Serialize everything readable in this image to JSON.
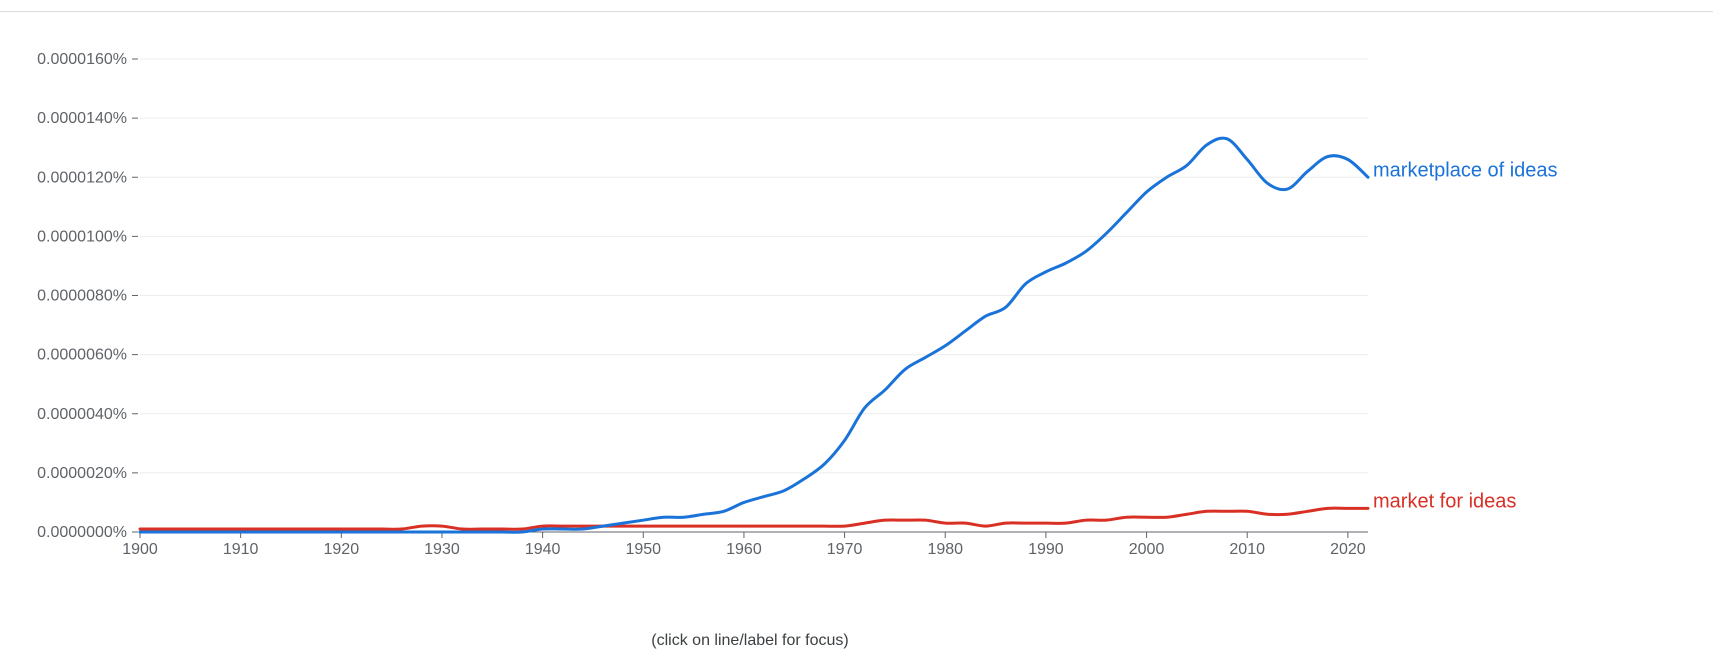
{
  "hint": "(click on line/label for focus)",
  "chart_data": {
    "type": "line",
    "title": "",
    "xlabel": "",
    "ylabel": "",
    "xlim": [
      1900,
      2022
    ],
    "ylim": [
      0,
      1.6e-05
    ],
    "grid": true,
    "x_ticks": [
      "1900",
      "1910",
      "1920",
      "1930",
      "1940",
      "1950",
      "1960",
      "1970",
      "1980",
      "1990",
      "2000",
      "2010",
      "2020"
    ],
    "y_ticks": [
      "0.0000000%",
      "0.0000020%",
      "0.0000040%",
      "0.0000060%",
      "0.0000080%",
      "0.0000100%",
      "0.0000120%",
      "0.0000140%",
      "0.0000160%"
    ],
    "x": [
      1900,
      1902,
      1904,
      1906,
      1908,
      1910,
      1912,
      1914,
      1916,
      1918,
      1920,
      1922,
      1924,
      1926,
      1928,
      1930,
      1932,
      1934,
      1936,
      1938,
      1940,
      1942,
      1944,
      1946,
      1948,
      1950,
      1952,
      1954,
      1956,
      1958,
      1960,
      1962,
      1964,
      1966,
      1968,
      1970,
      1972,
      1974,
      1976,
      1978,
      1980,
      1982,
      1984,
      1986,
      1988,
      1990,
      1992,
      1994,
      1996,
      1998,
      2000,
      2002,
      2004,
      2006,
      2008,
      2010,
      2012,
      2014,
      2016,
      2018,
      2020,
      2022
    ],
    "series": [
      {
        "name": "marketplace of ideas",
        "color": "#1a73d9",
        "values": [
          0.0,
          0.0,
          0.0,
          0.0,
          0.0,
          0.0,
          0.0,
          0.0,
          0.0,
          0.0,
          0.0,
          0.0,
          0.0,
          0.0,
          0.0,
          0.0,
          0.0,
          0.0,
          0.0,
          0.0,
          1e-07,
          1e-07,
          1e-07,
          2e-07,
          3e-07,
          4e-07,
          5e-07,
          5e-07,
          6e-07,
          7e-07,
          1e-06,
          1.2e-06,
          1.4e-06,
          1.8e-06,
          2.3e-06,
          3.1e-06,
          4.2e-06,
          4.8e-06,
          5.5e-06,
          5.9e-06,
          6.3e-06,
          6.8e-06,
          7.3e-06,
          7.6e-06,
          8.4e-06,
          8.8e-06,
          9.1e-06,
          9.5e-06,
          1.01e-05,
          1.08e-05,
          1.15e-05,
          1.2e-05,
          1.24e-05,
          1.31e-05,
          1.33e-05,
          1.26e-05,
          1.18e-05,
          1.16e-05,
          1.22e-05,
          1.27e-05,
          1.26e-05,
          1.2e-05
        ]
      },
      {
        "name": "market for ideas",
        "color": "#d93025",
        "values": [
          1e-07,
          1e-07,
          1e-07,
          1e-07,
          1e-07,
          1e-07,
          1e-07,
          1e-07,
          1e-07,
          1e-07,
          1e-07,
          1e-07,
          1e-07,
          1e-07,
          2e-07,
          2e-07,
          1e-07,
          1e-07,
          1e-07,
          1e-07,
          2e-07,
          2e-07,
          2e-07,
          2e-07,
          2e-07,
          2e-07,
          2e-07,
          2e-07,
          2e-07,
          2e-07,
          2e-07,
          2e-07,
          2e-07,
          2e-07,
          2e-07,
          2e-07,
          3e-07,
          4e-07,
          4e-07,
          4e-07,
          3e-07,
          3e-07,
          2e-07,
          3e-07,
          3e-07,
          3e-07,
          3e-07,
          4e-07,
          4e-07,
          5e-07,
          5e-07,
          5e-07,
          6e-07,
          7e-07,
          7e-07,
          7e-07,
          6e-07,
          6e-07,
          7e-07,
          8e-07,
          8e-07,
          8e-07
        ]
      }
    ]
  }
}
